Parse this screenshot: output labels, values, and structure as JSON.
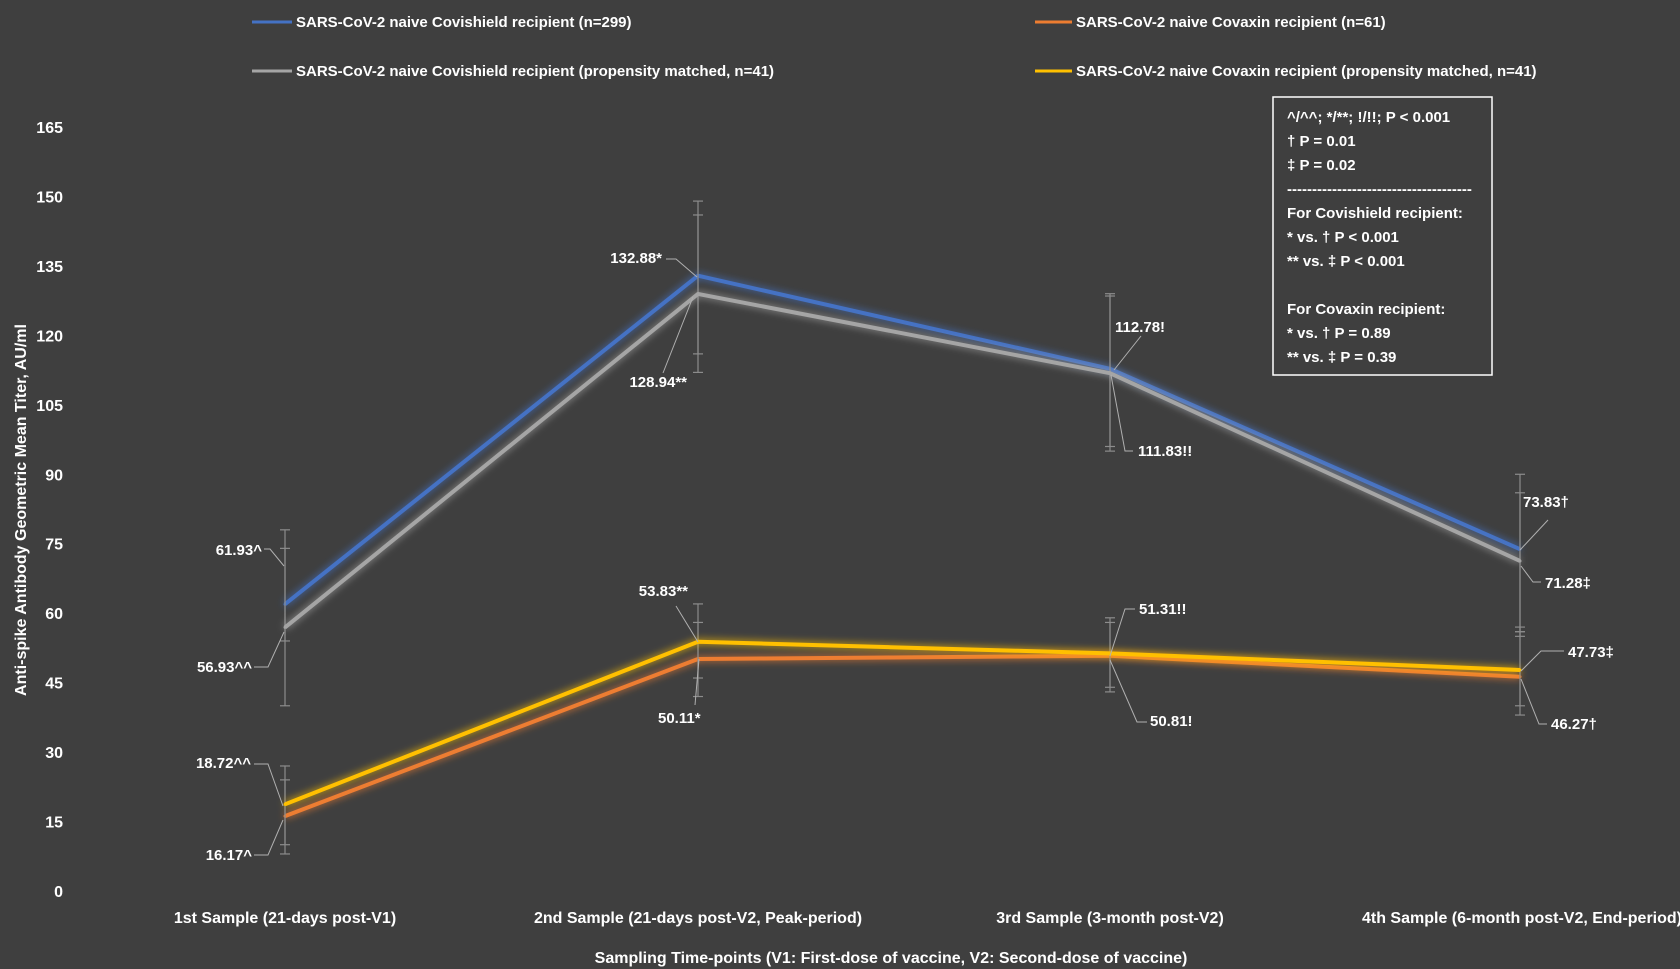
{
  "chart_data": {
    "type": "line",
    "xlabel": "Sampling Time-points (V1: First-dose of vaccine, V2: Second-dose of vaccine)",
    "ylabel": "Anti-spike Antibody Geometric Mean Titer, AU/ml",
    "ylim": [
      0,
      165
    ],
    "yticks": [
      "0",
      "15",
      "30",
      "45",
      "60",
      "75",
      "90",
      "105",
      "120",
      "135",
      "150",
      "165"
    ],
    "categories": [
      "1st Sample (21-days post-V1)",
      "2nd Sample (21-days post-V2, Peak-period)",
      "3rd Sample (3-month post-V2)",
      "4th Sample (6-month post-V2, End-period)"
    ],
    "legend_position": "top",
    "series": [
      {
        "name": "SARS-CoV-2 naive Covishield recipient (n=299)",
        "color": "#4472c4",
        "values": [
          61.93,
          132.88,
          112.78,
          73.83
        ],
        "labels": [
          "61.93^",
          "132.88*",
          "112.78!",
          "73.83†"
        ],
        "err_low": [
          54,
          116,
          96,
          56
        ],
        "err_high": [
          74,
          146,
          128.5,
          86
        ]
      },
      {
        "name": "SARS-CoV-2 naive Covishield recipient (propensity matched, n=41)",
        "color": "#a5a5a5",
        "values": [
          56.93,
          128.94,
          111.83,
          71.28
        ],
        "labels": [
          "56.93^^",
          "128.94**",
          "111.83!!",
          "71.28‡"
        ],
        "err_low": [
          40,
          112,
          95,
          55
        ],
        "err_high": [
          78,
          149,
          129,
          90
        ]
      },
      {
        "name": "SARS-CoV-2 naive Covaxin recipient (n=61)",
        "color": "#ed7d31",
        "values": [
          16.17,
          50.11,
          50.81,
          46.27
        ],
        "labels": [
          "16.17^",
          "50.11*",
          "50.81!",
          "46.27†"
        ],
        "err_low": [
          8,
          42,
          43,
          38
        ],
        "err_high": [
          24,
          58,
          58,
          56
        ]
      },
      {
        "name": "SARS-CoV-2 naive Covaxin recipient (propensity matched, n=41)",
        "color": "#ffc000",
        "values": [
          18.72,
          53.83,
          51.31,
          47.73
        ],
        "labels": [
          "18.72^^",
          "53.83**",
          "51.31!!",
          "47.73‡"
        ],
        "err_low": [
          10,
          46,
          44,
          40
        ],
        "err_high": [
          27,
          62,
          59,
          57
        ]
      }
    ],
    "annotation": [
      "^/^^; */**; !/!!; P < 0.001",
      "† P = 0.01",
      "‡ P = 0.02",
      "-------------------------------------",
      "For Covishield recipient:",
      "* vs. † P < 0.001",
      "** vs. ‡ P < 0.001",
      "",
      "For Covaxin recipient:",
      "* vs. † P = 0.89",
      "** vs. ‡ P = 0.39"
    ]
  }
}
